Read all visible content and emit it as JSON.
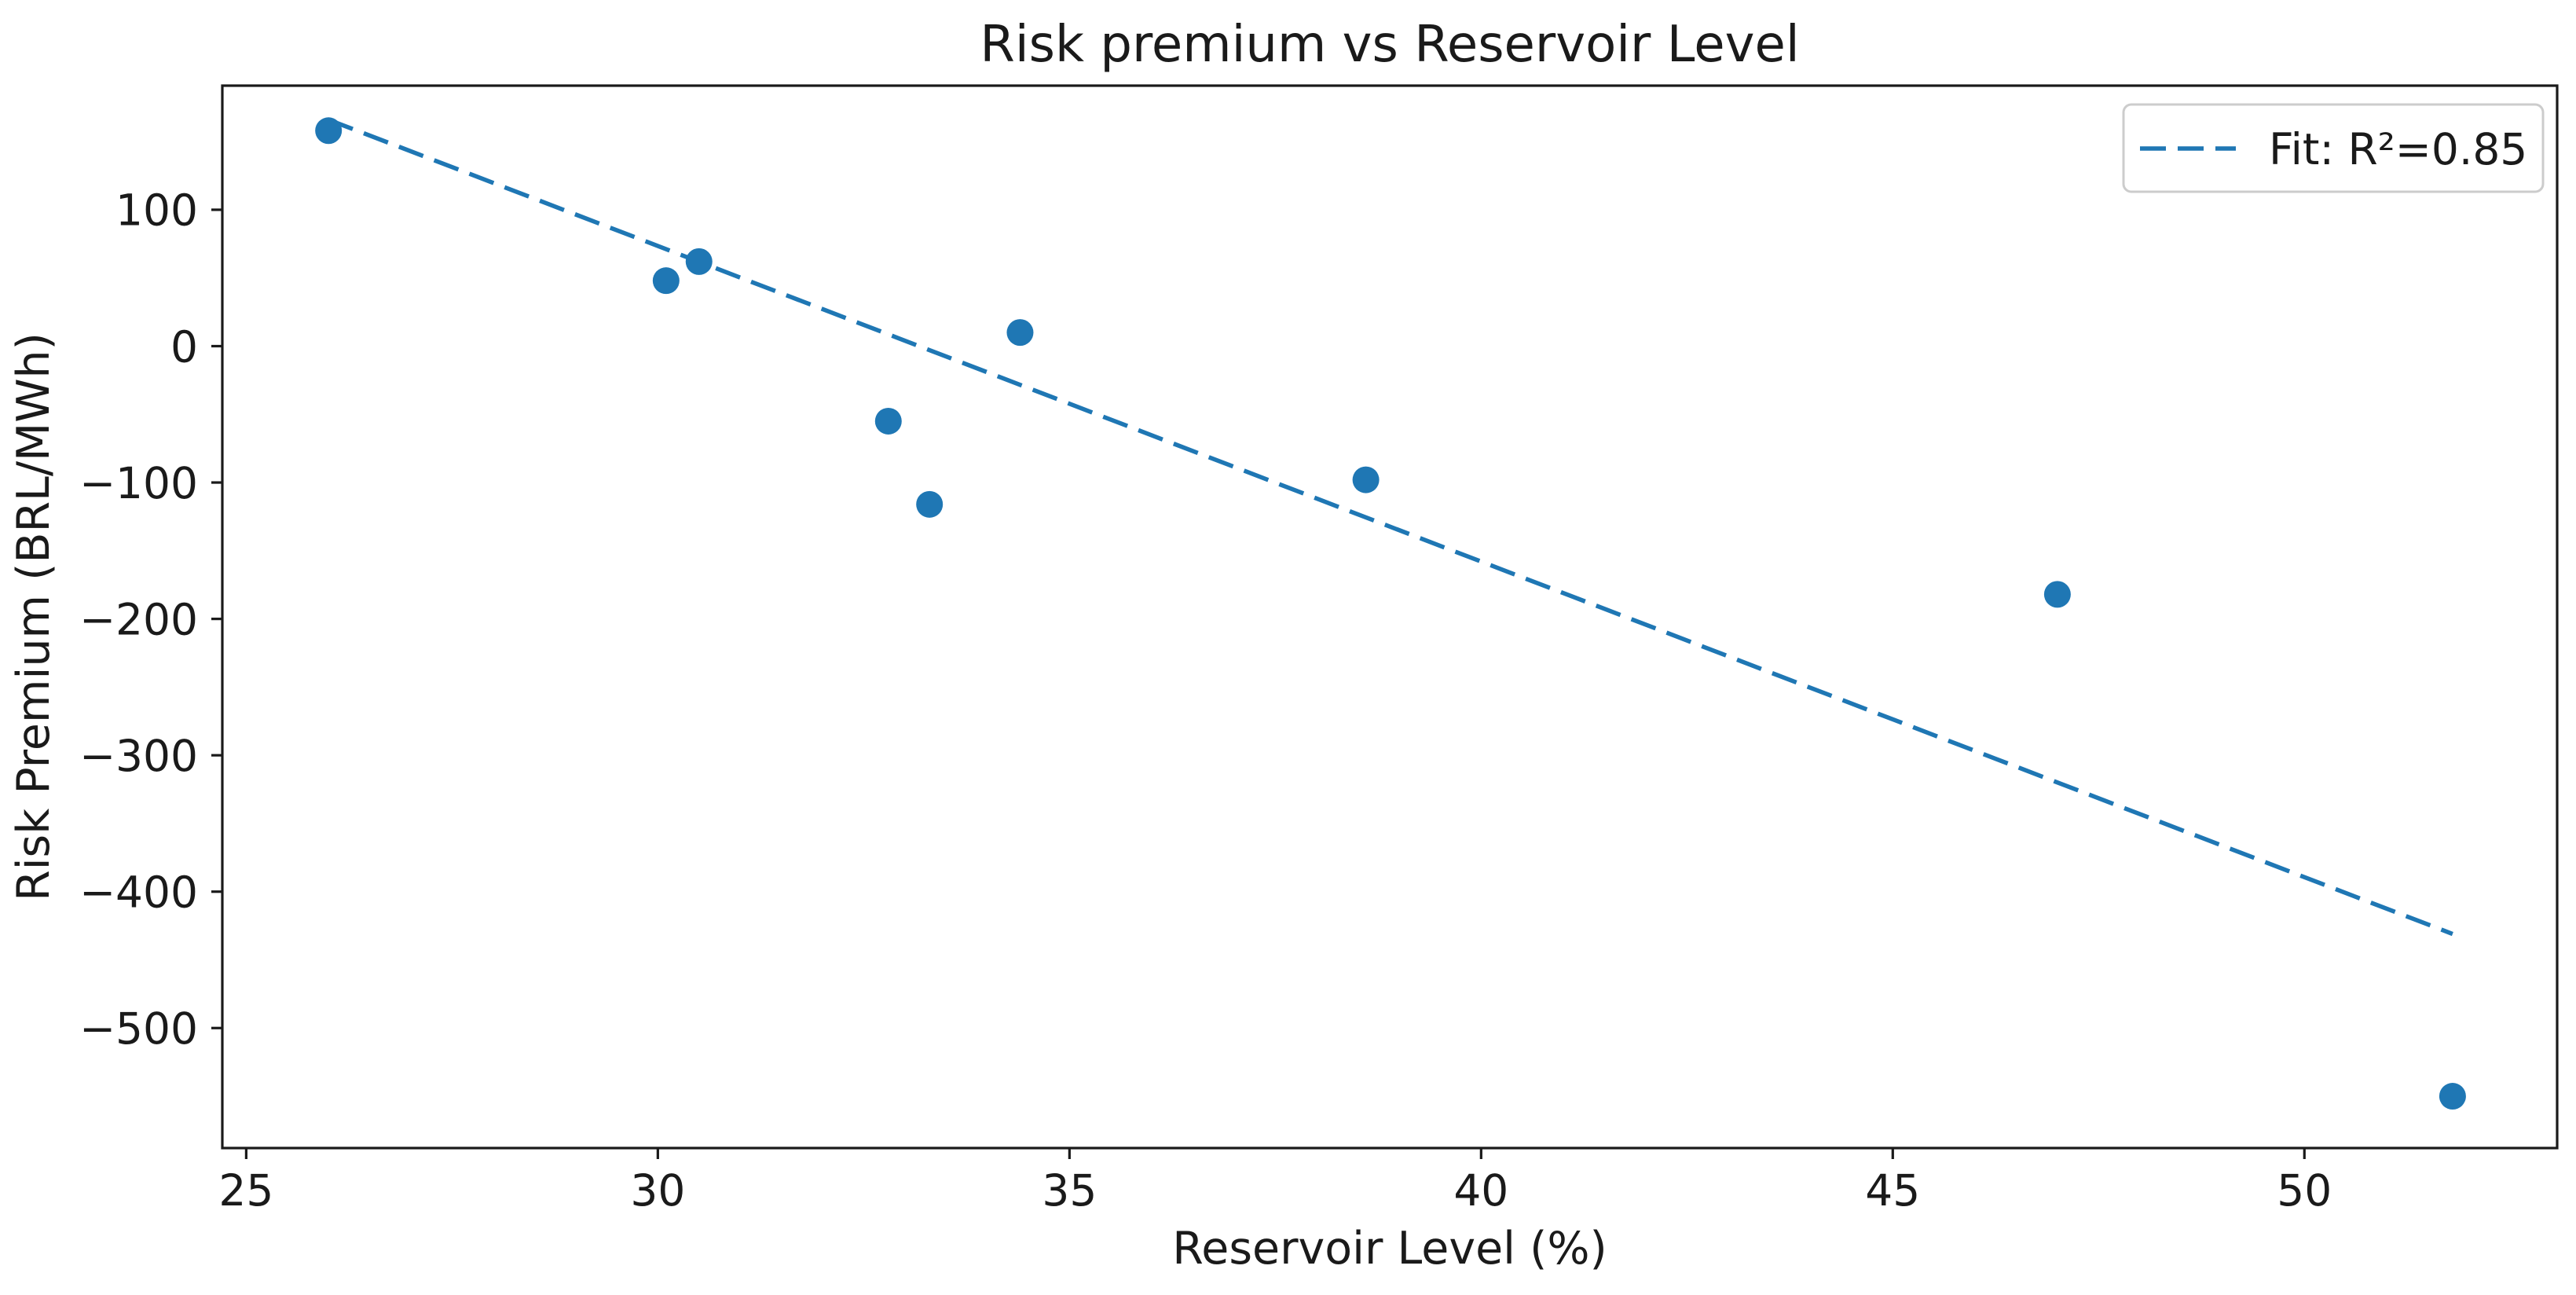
{
  "chart_data": {
    "type": "scatter",
    "title": "Risk premium vs Reservoir Level",
    "xlabel": "Reservoir Level (%)",
    "ylabel": "Risk Premium (BRL/MWh)",
    "xlim": [
      24.71,
      53.07
    ],
    "ylim": [
      -588,
      191
    ],
    "x_ticks": [
      25,
      30,
      35,
      40,
      45,
      50
    ],
    "x_tick_labels": [
      "25",
      "30",
      "35",
      "40",
      "45",
      "50"
    ],
    "y_ticks": [
      100,
      0,
      -100,
      -200,
      -300,
      -400,
      -500
    ],
    "y_tick_labels": [
      "100",
      "0",
      "−100",
      "−200",
      "−300",
      "−400",
      "−500"
    ],
    "grid": false,
    "legend": {
      "position": "upper right",
      "entries": [
        {
          "label": "Fit: R²=0.85",
          "style": "dashed-line",
          "color": "#1f77b4"
        }
      ]
    },
    "series": [
      {
        "name": "observations",
        "type": "scatter",
        "color": "#1f77b4",
        "points": [
          [
            26.0,
            158
          ],
          [
            30.1,
            48
          ],
          [
            30.5,
            62
          ],
          [
            32.8,
            -55
          ],
          [
            33.3,
            -116
          ],
          [
            34.4,
            10
          ],
          [
            38.6,
            -98
          ],
          [
            47.0,
            -182
          ],
          [
            51.8,
            -550
          ]
        ]
      },
      {
        "name": "fit",
        "type": "line",
        "style": "dashed",
        "color": "#1f77b4",
        "r_squared": 0.85,
        "points": [
          [
            26.0,
            166
          ],
          [
            51.8,
            -431
          ]
        ]
      }
    ]
  },
  "colors": {
    "accent": "#1f77b4",
    "axis": "#1a1a1a",
    "legend_border": "#cccccc",
    "background": "#ffffff"
  }
}
